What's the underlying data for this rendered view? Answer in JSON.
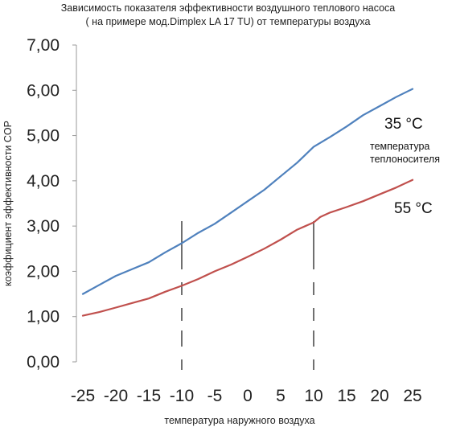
{
  "chart_data": {
    "type": "line",
    "title_lines": [
      "Зависимость показателя эффективности воздушного теплового насоса",
      "( на примере мод.Dimplex LA 17 TU) от температуры воздуха"
    ],
    "xlabel": "температура наружного воздуха",
    "ylabel": "коэффициент эффективности COP",
    "xlim": [
      -25,
      25
    ],
    "ylim": [
      0,
      7
    ],
    "x_ticks": [
      "-25",
      "-20",
      "-15",
      "-10",
      "-5",
      "0",
      "5",
      "10",
      "15",
      "20",
      "25"
    ],
    "y_ticks": [
      "0,00",
      "1,00",
      "2,00",
      "3,00",
      "4,00",
      "5,00",
      "6,00",
      "7,00"
    ],
    "grid": false,
    "series": [
      {
        "name": "35 °C",
        "color": "#4f81bd",
        "x": [
          -25,
          -22.5,
          -20,
          -17.5,
          -15,
          -12.5,
          -10,
          -7.5,
          -5,
          -2.5,
          0,
          2.5,
          5,
          7.5,
          10,
          12.5,
          15,
          17.5,
          20,
          22.5,
          25
        ],
        "values": [
          1.5,
          1.7,
          1.9,
          2.05,
          2.2,
          2.42,
          2.62,
          2.85,
          3.05,
          3.3,
          3.55,
          3.8,
          4.1,
          4.4,
          4.75,
          4.97,
          5.2,
          5.45,
          5.65,
          5.85,
          6.03
        ]
      },
      {
        "name": "55 °C",
        "color": "#c0504d",
        "x": [
          -25,
          -22.5,
          -20,
          -17.5,
          -15,
          -12.5,
          -10,
          -7.5,
          -5,
          -2.5,
          0,
          2.5,
          5,
          7.5,
          10,
          11,
          12.5,
          15,
          17.5,
          20,
          22.5,
          25
        ],
        "values": [
          1.02,
          1.1,
          1.2,
          1.3,
          1.4,
          1.55,
          1.68,
          1.83,
          2.0,
          2.15,
          2.32,
          2.5,
          2.7,
          2.92,
          3.08,
          3.2,
          3.3,
          3.42,
          3.55,
          3.7,
          3.85,
          4.02
        ]
      }
    ],
    "annotations": {
      "series_caption_line1": "температура",
      "series_caption_line2": "теплоносителя"
    },
    "reference_lines_x": [
      -10,
      10
    ]
  }
}
